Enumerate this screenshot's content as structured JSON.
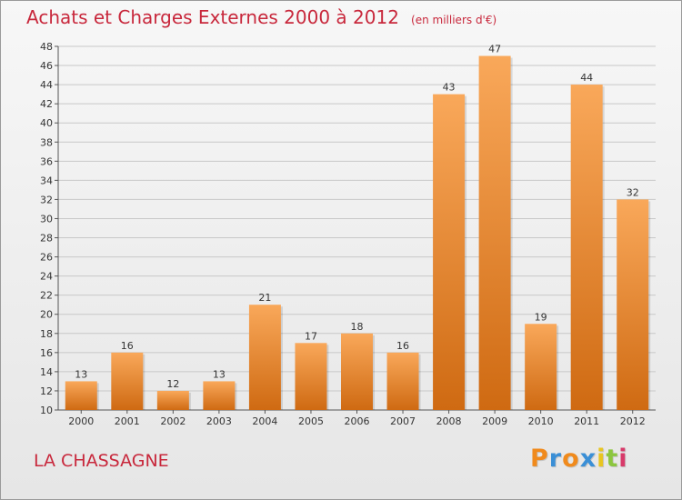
{
  "header": {
    "title": "Achats et Charges Externes 2000 à 2012",
    "subtitle": "(en milliers d'€)"
  },
  "footer": {
    "commune": "LA CHASSAGNE",
    "logo_letters": [
      "P",
      "r",
      "o",
      "x",
      "i",
      "t",
      "i"
    ],
    "logo_colors": [
      "#f08a1c",
      "#3a8fd6",
      "#f08a1c",
      "#3a8fd6",
      "#e8c520",
      "#8cc63f",
      "#d83a6a"
    ]
  },
  "colors": {
    "title": "#c8283c",
    "bar_light": "#f9a85a",
    "bar_dark": "#cf6a12",
    "grid": "#c8c8c8"
  },
  "chart_data": {
    "type": "bar",
    "title": "Achats et Charges Externes 2000 à 2012",
    "subtitle": "(en milliers d'€)",
    "categories": [
      "2000",
      "2001",
      "2002",
      "2003",
      "2004",
      "2005",
      "2006",
      "2007",
      "2008",
      "2009",
      "2010",
      "2011",
      "2012"
    ],
    "values": [
      13,
      16,
      12,
      13,
      21,
      17,
      18,
      16,
      43,
      47,
      19,
      44,
      32
    ],
    "ylim": [
      10,
      48
    ],
    "yticks": [
      10,
      12,
      14,
      16,
      18,
      20,
      22,
      24,
      26,
      28,
      30,
      32,
      34,
      36,
      38,
      40,
      42,
      44,
      46,
      48
    ],
    "xlabel": "",
    "ylabel": "",
    "grid": true,
    "legend": "none"
  }
}
